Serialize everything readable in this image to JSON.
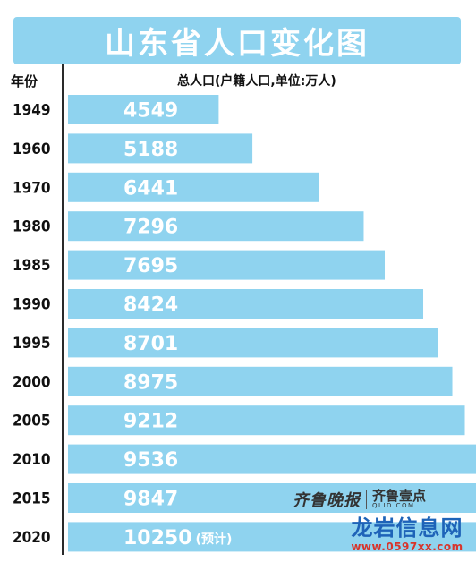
{
  "chart_data": {
    "type": "bar",
    "orientation": "horizontal",
    "title": "山东省人口变化图",
    "category_header": "年份",
    "unit_label": "总人口(户籍人口,单位:万人)",
    "categories": [
      "1949",
      "1960",
      "1970",
      "1980",
      "1985",
      "1990",
      "1995",
      "2000",
      "2005",
      "2010",
      "2015",
      "2020"
    ],
    "values": [
      4549,
      5188,
      6441,
      7296,
      7695,
      8424,
      8701,
      8975,
      9212,
      9536,
      9847,
      10250
    ],
    "value_labels": [
      "4549",
      "5188",
      "6441",
      "7296",
      "7695",
      "8424",
      "8701",
      "8975",
      "9212",
      "9536",
      "9847",
      "10250"
    ],
    "notes": [
      "",
      "",
      "",
      "",
      "",
      "",
      "",
      "",
      "",
      "",
      "",
      "(预计)"
    ],
    "bar_color": "#8fd3ef",
    "grid": false,
    "legend": "none"
  },
  "logo": {
    "source_cn": "齐鲁晚报",
    "brand_cn": "齐鲁壹点",
    "brand_en": "QLID.COM"
  },
  "watermark": {
    "text_cn": "龙岩信息网",
    "url": "www.0597xx.com"
  }
}
